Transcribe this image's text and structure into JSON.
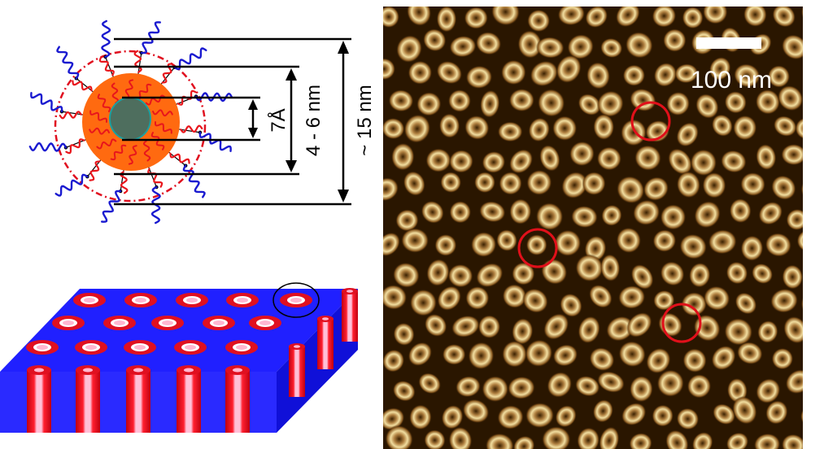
{
  "figure": {
    "schematic": {
      "dimension_labels": {
        "core": "7Å",
        "inner": "4 - 6 nm",
        "outer": "~ 15 nm"
      },
      "colors": {
        "core": "#4e6e5e",
        "shell": "#ff6a10",
        "inner_ligand": "#e8161c",
        "outer_ligand": "#1a1ad0",
        "film": "#2020ff",
        "pore_ring": "#e01020",
        "pore_center": "#ffb6d0"
      }
    },
    "micrograph": {
      "scale_bar": "100 nm",
      "highlight_color": "#e0101a",
      "background": "#2a1600",
      "particle_color": "#f0d890"
    }
  }
}
